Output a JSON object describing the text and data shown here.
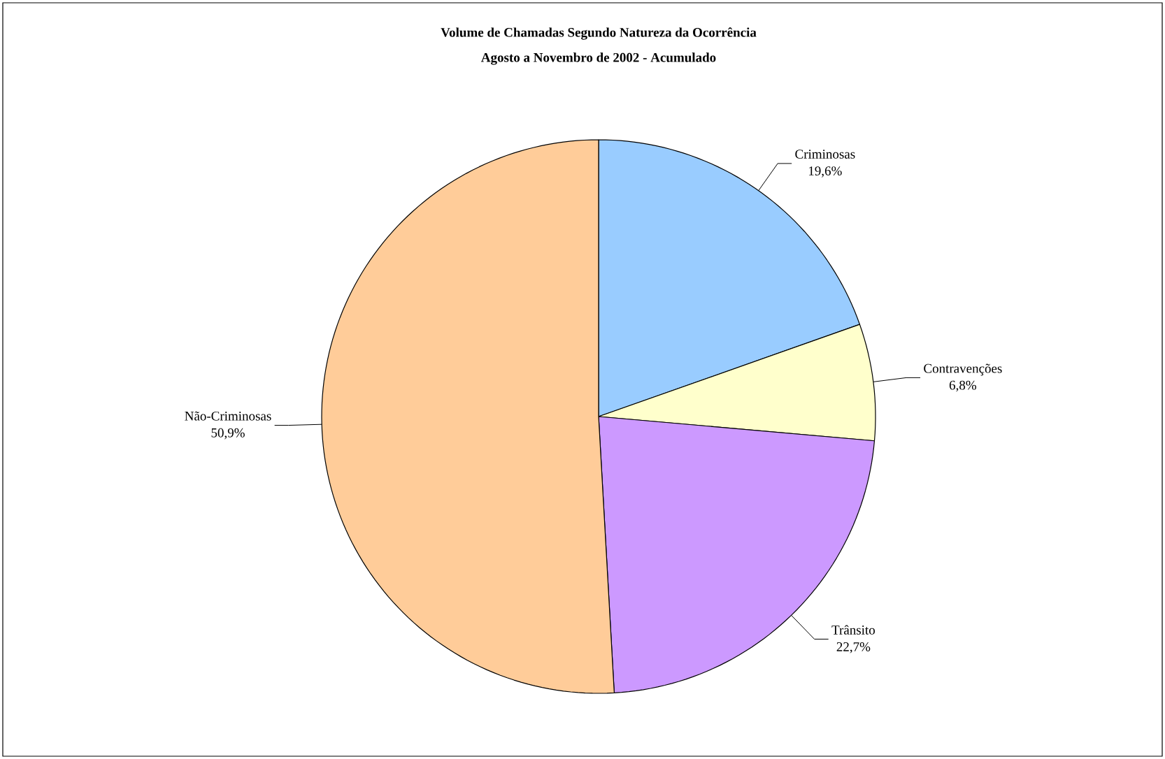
{
  "chart_data": {
    "type": "pie",
    "title": "Volume de Chamadas Segundo Natureza da Ocorrência",
    "subtitle": "Agosto a Novembro de 2002 - Acumulado",
    "categories": [
      "Criminosas",
      "Contravenções",
      "Trânsito",
      "Não-Criminosas"
    ],
    "values": [
      19.6,
      6.8,
      22.7,
      50.9
    ],
    "colors": [
      "#99ccff",
      "#ffffcc",
      "#cc99ff",
      "#ffcc99"
    ],
    "value_labels": [
      "19,6%",
      "6,8%",
      "22,7%",
      "50,9%"
    ]
  }
}
